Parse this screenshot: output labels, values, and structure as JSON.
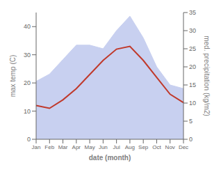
{
  "chart_data": {
    "type": "line",
    "categories": [
      "Jan",
      "Feb",
      "Mar",
      "Apr",
      "May",
      "Jun",
      "Jul",
      "Aug",
      "Sep",
      "Oct",
      "Nov",
      "Dec"
    ],
    "series": [
      {
        "type": "area",
        "color": "#c8d0f0",
        "axis": "y2",
        "values": [
          16,
          18,
          22,
          26,
          26,
          25,
          30,
          34,
          28,
          20,
          15,
          14
        ]
      },
      {
        "type": "line",
        "color": "#c0392b",
        "values": [
          12,
          11,
          14,
          18,
          23,
          28,
          32,
          33,
          28,
          22,
          16,
          13
        ]
      }
    ],
    "xlabel": "date (month)",
    "ylabel": "max temp (C)",
    "y2label": "med. precipitation (kg/m2)",
    "ylim": [
      0,
      45
    ],
    "yticks": [
      0,
      10,
      20,
      30,
      40
    ],
    "y2lim": [
      0,
      35
    ],
    "y2ticks": [
      0,
      5,
      10,
      15,
      20,
      25,
      30,
      35
    ]
  }
}
